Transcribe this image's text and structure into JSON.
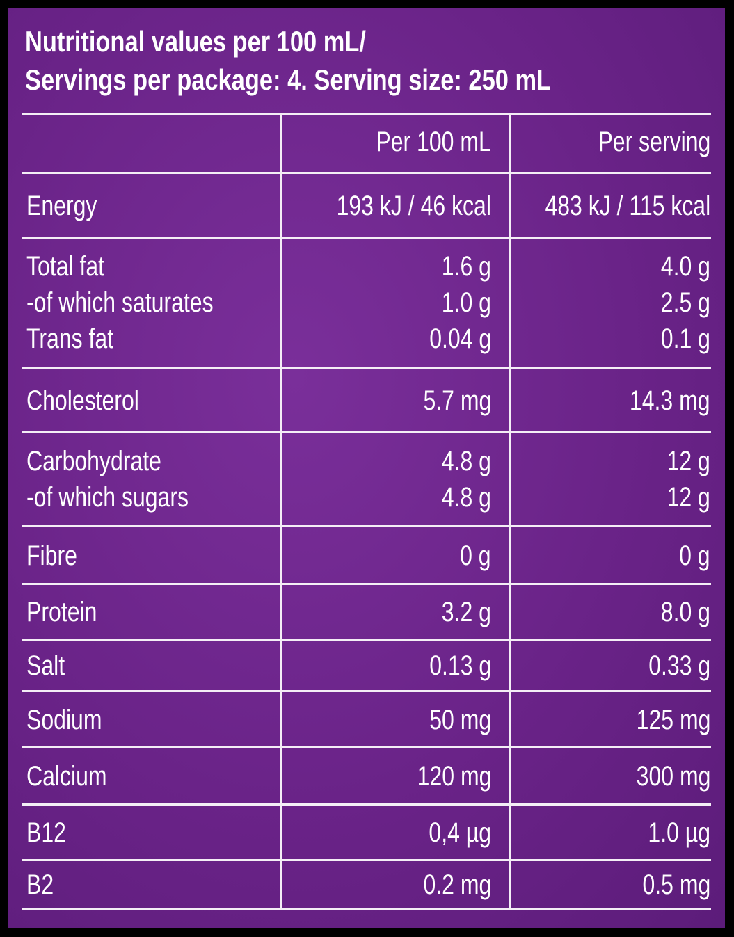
{
  "header": {
    "title_lines": [
      "Nutritional values per 100 mL/",
      "Servings per package: 4. Serving size: 250 mL"
    ]
  },
  "table": {
    "columns": [
      "Per 100 mL",
      "Per serving"
    ],
    "rows": [
      {
        "label": [
          "Energy"
        ],
        "per_100ml": [
          "193 kJ / 46 kcal"
        ],
        "per_serving": [
          "483 kJ / 115 kcal"
        ]
      },
      {
        "label": [
          "Total fat",
          "-of which saturates",
          "Trans fat"
        ],
        "per_100ml": [
          "1.6 g",
          "1.0 g",
          "0.04 g"
        ],
        "per_serving": [
          "4.0 g",
          "2.5 g",
          "0.1 g"
        ]
      },
      {
        "label": [
          "Cholesterol"
        ],
        "per_100ml": [
          "5.7 mg"
        ],
        "per_serving": [
          "14.3 mg"
        ]
      },
      {
        "label": [
          "Carbohydrate",
          "-of which sugars"
        ],
        "per_100ml": [
          "4.8 g",
          "4.8 g"
        ],
        "per_serving": [
          "12 g",
          "12 g"
        ]
      },
      {
        "label": [
          "Fibre"
        ],
        "per_100ml": [
          "0 g"
        ],
        "per_serving": [
          "0 g"
        ]
      },
      {
        "label": [
          "Protein"
        ],
        "per_100ml": [
          "3.2 g"
        ],
        "per_serving": [
          "8.0 g"
        ]
      },
      {
        "label": [
          "Salt"
        ],
        "per_100ml": [
          "0.13 g"
        ],
        "per_serving": [
          "0.33 g"
        ]
      },
      {
        "label": [
          "Sodium"
        ],
        "per_100ml": [
          "50 mg"
        ],
        "per_serving": [
          "125 mg"
        ]
      },
      {
        "label": [
          "Calcium"
        ],
        "per_100ml": [
          "120 mg"
        ],
        "per_serving": [
          "300 mg"
        ]
      },
      {
        "label": [
          "B12"
        ],
        "per_100ml": [
          "0,4 µg"
        ],
        "per_serving": [
          "1.0 µg"
        ]
      },
      {
        "label": [
          "B2"
        ],
        "per_100ml": [
          "0.2 mg"
        ],
        "per_serving": [
          "0.5 mg"
        ]
      }
    ]
  }
}
